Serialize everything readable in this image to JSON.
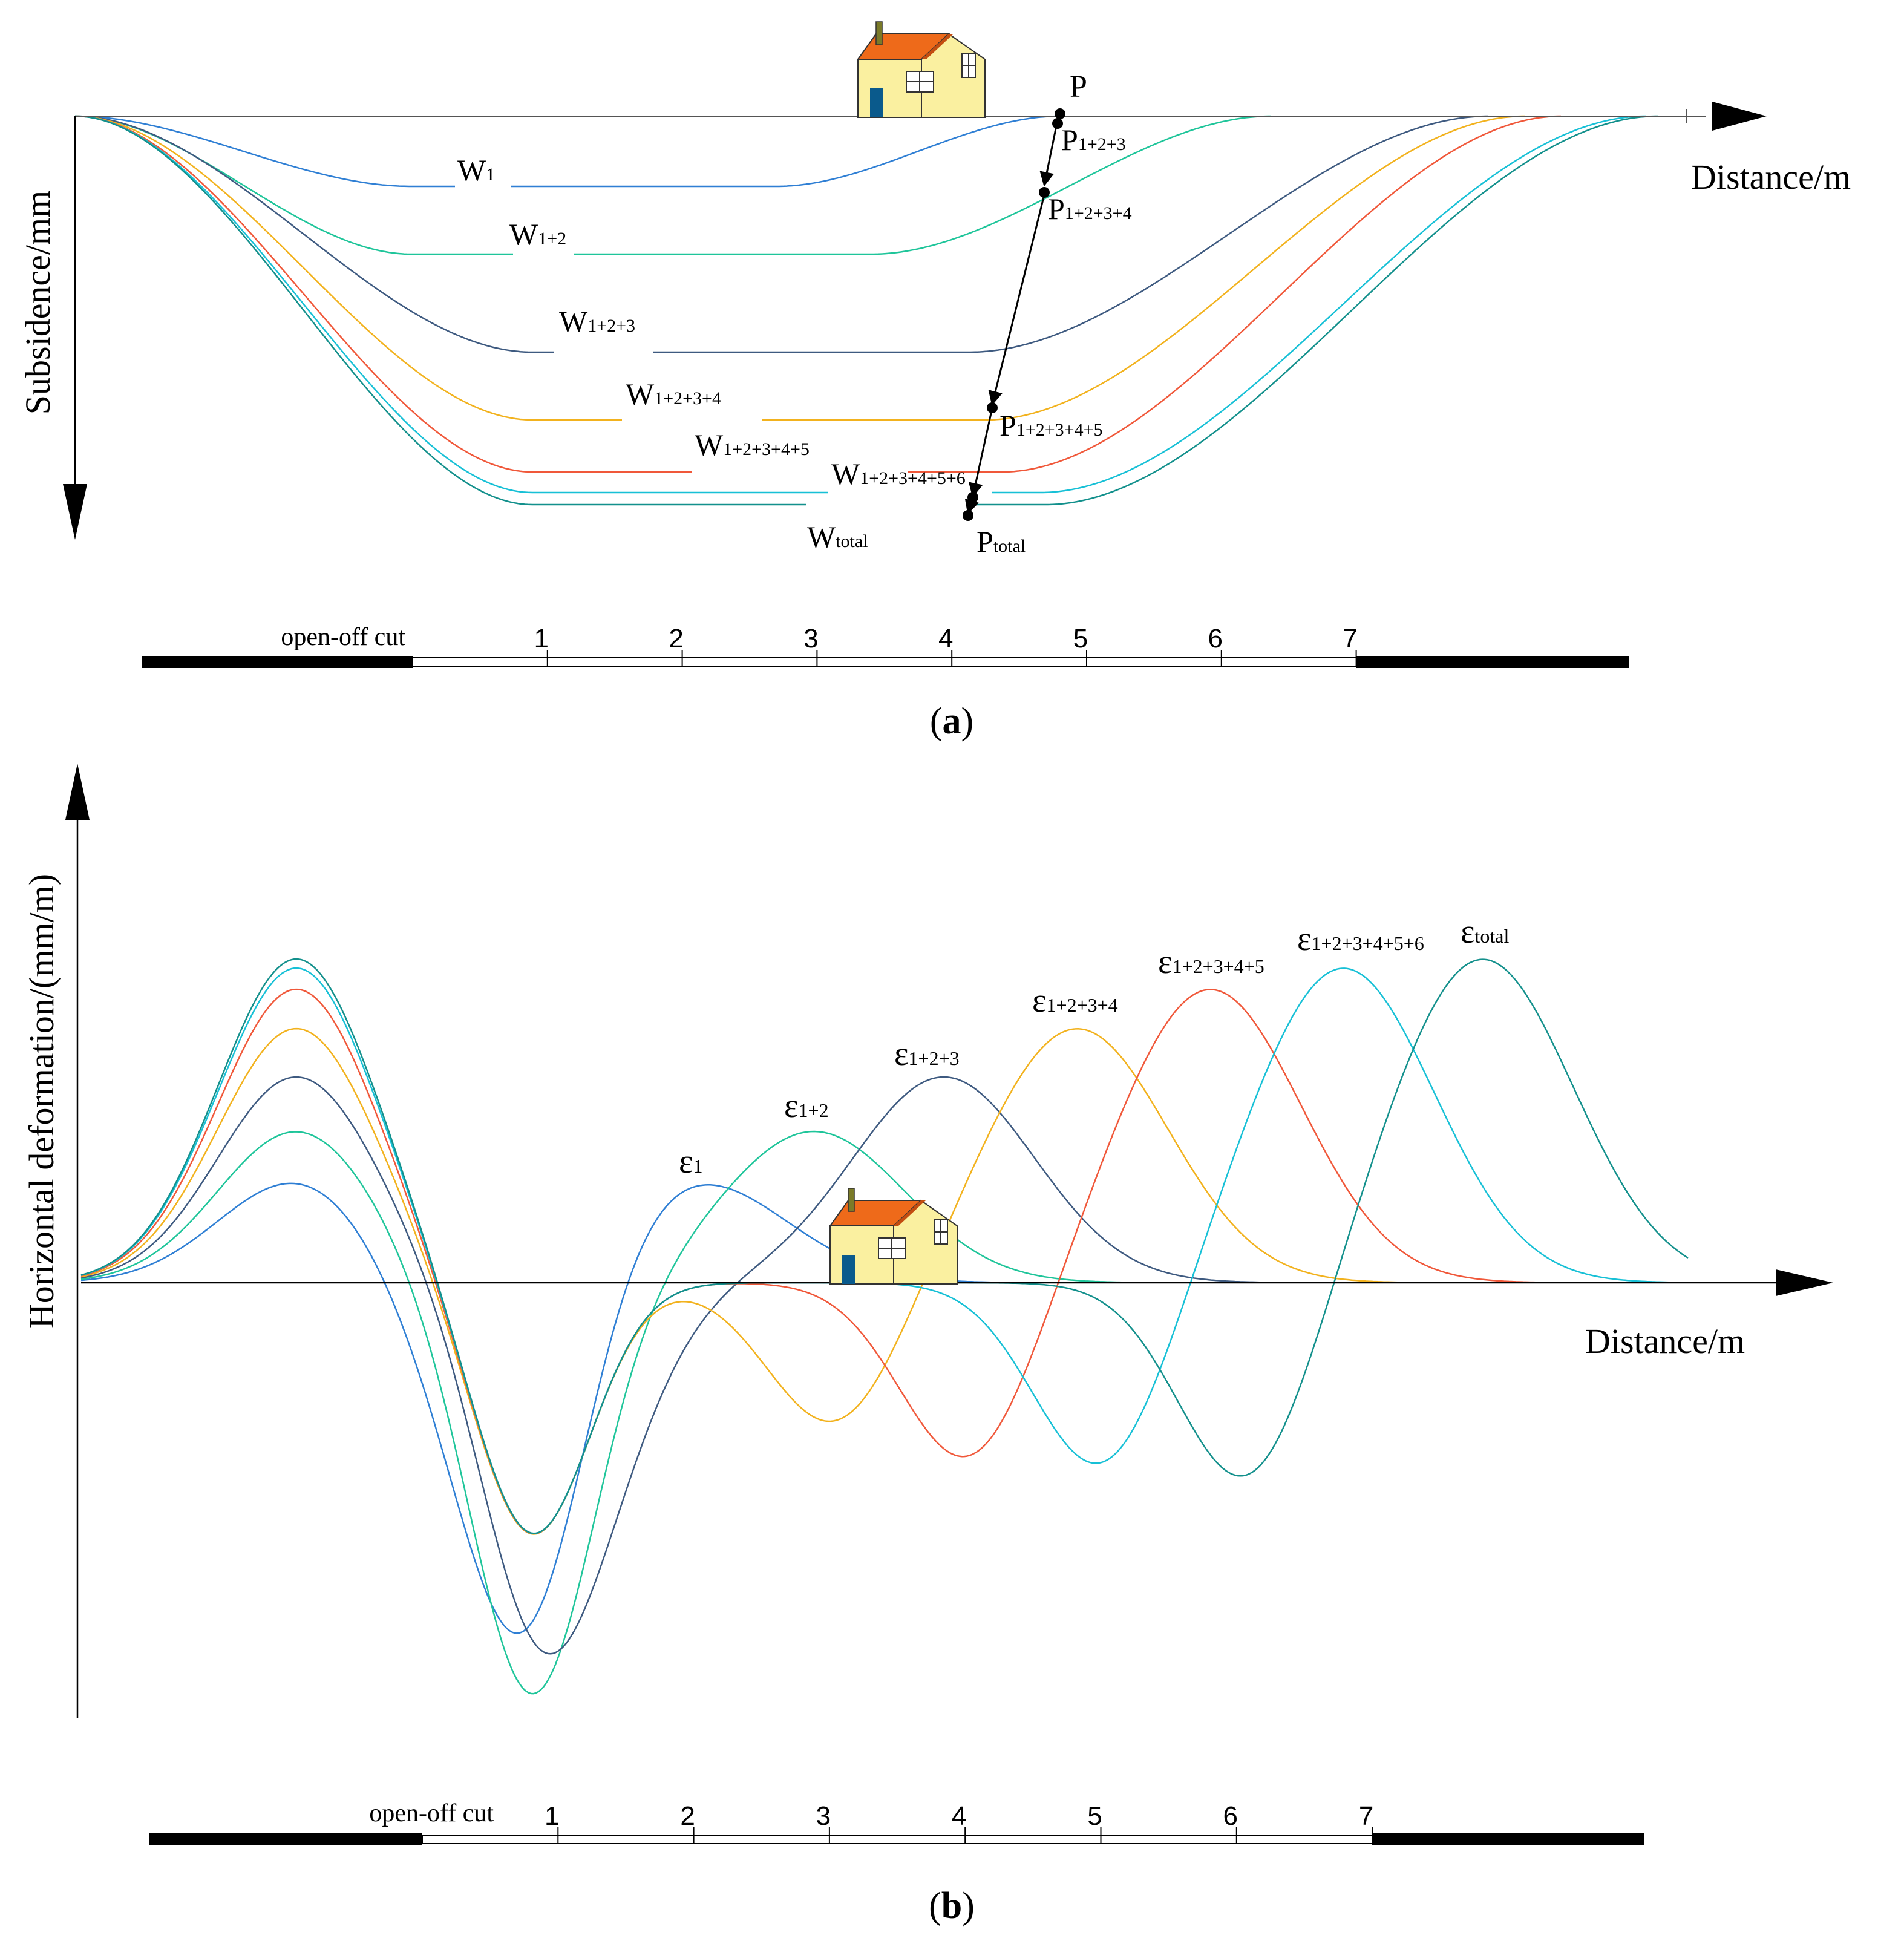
{
  "panel_a": {
    "y_axis_label": "Subsidence/mm",
    "x_axis_label": "Distance/m",
    "point_label": "P",
    "curve_labels": {
      "w1": {
        "main": "W",
        "sub": "1"
      },
      "w12": {
        "main": "W",
        "sub": "1+2"
      },
      "w123": {
        "main": "W",
        "sub": "1+2+3"
      },
      "w1234": {
        "main": "W",
        "sub": "1+2+3+4"
      },
      "w12345": {
        "main": "W",
        "sub": "1+2+3+4+5"
      },
      "w123456": {
        "main": "W",
        "sub": "1+2+3+4+5+6"
      },
      "wtotal": {
        "main": "W",
        "sub": "total"
      }
    },
    "point_labels": {
      "p123": {
        "main": "P",
        "sub": "1+2+3"
      },
      "p1234": {
        "main": "P",
        "sub": "1+2+3+4"
      },
      "p12345": {
        "main": "P",
        "sub": "1+2+3+4+5"
      },
      "ptotal": {
        "main": "P",
        "sub": "total"
      }
    },
    "scale": {
      "open_off_cut": "open-off cut",
      "ticks": [
        "1",
        "2",
        "3",
        "4",
        "5",
        "6",
        "7"
      ]
    },
    "caption": {
      "open": "(",
      "letter": "a",
      "close": ")"
    }
  },
  "panel_b": {
    "y_axis_label": "Horizontal deformation/(mm/m)",
    "x_axis_label": "Distance/m",
    "curve_labels": {
      "e1": {
        "main": "ε",
        "sub": "1"
      },
      "e12": {
        "main": "ε",
        "sub": "1+2"
      },
      "e123": {
        "main": "ε",
        "sub": "1+2+3"
      },
      "e1234": {
        "main": "ε",
        "sub": "1+2+3+4"
      },
      "e12345": {
        "main": "ε",
        "sub": "1+2+3+4+5"
      },
      "e123456": {
        "main": "ε",
        "sub": "1+2+3+4+5+6"
      },
      "etotal": {
        "main": "ε",
        "sub": "total"
      }
    },
    "scale": {
      "open_off_cut": "open-off cut",
      "ticks": [
        "1",
        "2",
        "3",
        "4",
        "5",
        "6",
        "7"
      ]
    },
    "caption": {
      "open": "(",
      "letter": "b",
      "close": ")"
    }
  },
  "colors": {
    "c1": "#2f7fd4",
    "c2": "#1fc59a",
    "c3": "#3e5a80",
    "c4": "#f2b21e",
    "c5": "#f0583a",
    "c6": "#17c0d6",
    "c7": "#13908c",
    "house_wall": "#faf0a0",
    "house_roof": "#ee6a1a",
    "house_door": "#0a5a8c",
    "chimney": "#7a7a28"
  }
}
